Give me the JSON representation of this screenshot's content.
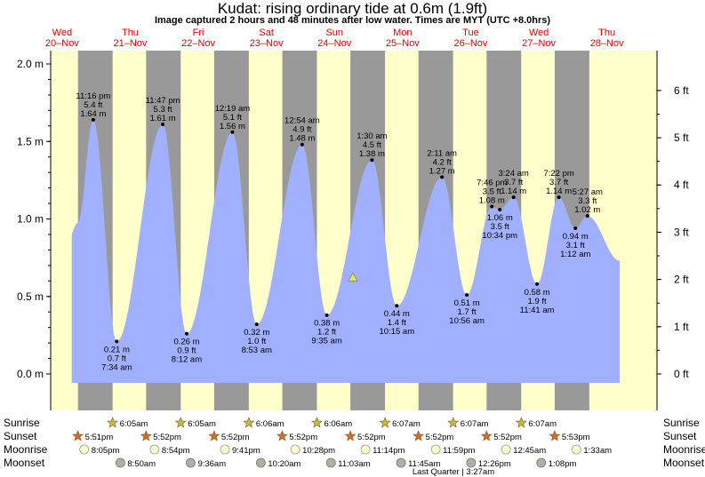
{
  "title": "Kudat: rising  ordinary tide at 0.6m (1.9ft)",
  "subtitle": "Image captured 2 hours and 48 minutes after low water. Times are MYT (UTC +8.0hrs)",
  "days": [
    {
      "name": "Wed",
      "date": "20–Nov"
    },
    {
      "name": "Thu",
      "date": "21–Nov"
    },
    {
      "name": "Fri",
      "date": "22–Nov"
    },
    {
      "name": "Sat",
      "date": "23–Nov"
    },
    {
      "name": "Sun",
      "date": "24–Nov"
    },
    {
      "name": "Mon",
      "date": "25–Nov"
    },
    {
      "name": "Tue",
      "date": "26–Nov"
    },
    {
      "name": "Wed",
      "date": "27–Nov"
    },
    {
      "name": "Thu",
      "date": "28–Nov"
    }
  ],
  "row_labels": {
    "sunrise": "Sunrise",
    "sunset": "Sunset",
    "moonrise": "Moonrise",
    "moonset": "Moonset"
  },
  "moon_phase": "Last Quarter | 3:27am",
  "colors": {
    "day_bg": "#ffffcc",
    "night_bg": "#999999",
    "water": "#a0b0ff",
    "day_text": "#e00000",
    "current_marker": "#e8e840"
  },
  "chart_data": {
    "type": "area",
    "ylabel_left_unit": "m",
    "ylabel_right_unit": "ft",
    "ylim": [
      -0.05,
      2.07
    ],
    "yticks_m": [
      "0.0 m",
      "0.5 m",
      "1.0 m",
      "1.5 m",
      "2.0 m"
    ],
    "yticks_ft": [
      "0 ft",
      "1 ft",
      "2 ft",
      "3 ft",
      "4 ft",
      "5 ft",
      "6 ft"
    ],
    "current": {
      "height_m": 0.6
    },
    "extremes": [
      {
        "type": "high",
        "time": "11:16 pm",
        "ft": "5.4 ft",
        "m": "1.64 m",
        "value": 1.64,
        "day": 0
      },
      {
        "type": "low",
        "time": "7:34 am",
        "ft": "0.7 ft",
        "m": "0.21 m",
        "value": 0.21,
        "day": 1
      },
      {
        "type": "high",
        "time": "11:47 pm",
        "ft": "5.3 ft",
        "m": "1.61 m",
        "value": 1.61,
        "day": 1
      },
      {
        "type": "low",
        "time": "8:12 am",
        "ft": "0.9 ft",
        "m": "0.26 m",
        "value": 0.26,
        "day": 2
      },
      {
        "type": "high",
        "time": "12:19 am",
        "ft": "5.1 ft",
        "m": "1.56 m",
        "value": 1.56,
        "day": 3
      },
      {
        "type": "low",
        "time": "8:53 am",
        "ft": "1.0 ft",
        "m": "0.32 m",
        "value": 0.32,
        "day": 3
      },
      {
        "type": "high",
        "time": "12:54 am",
        "ft": "4.9 ft",
        "m": "1.48 m",
        "value": 1.48,
        "day": 4
      },
      {
        "type": "low",
        "time": "9:35 am",
        "ft": "1.2 ft",
        "m": "0.38 m",
        "value": 0.38,
        "day": 4
      },
      {
        "type": "high",
        "time": "1:30 am",
        "ft": "4.5 ft",
        "m": "1.38 m",
        "value": 1.38,
        "day": 5
      },
      {
        "type": "low",
        "time": "10:15 am",
        "ft": "1.4 ft",
        "m": "0.44 m",
        "value": 0.44,
        "day": 5
      },
      {
        "type": "high",
        "time": "2:11 am",
        "ft": "4.2 ft",
        "m": "1.27 m",
        "value": 1.27,
        "day": 6
      },
      {
        "type": "low",
        "time": "10:56 am",
        "ft": "1.7 ft",
        "m": "0.51 m",
        "value": 0.51,
        "day": 6
      },
      {
        "type": "high",
        "time": "7:46 pm",
        "ft": "3.5 ft",
        "m": "1.08 m",
        "value": 1.08,
        "day": 6
      },
      {
        "type": "low",
        "time": "10:34 pm",
        "ft": "3.5 ft",
        "m": "1.06 m",
        "value": 1.06,
        "day": 6
      },
      {
        "type": "high",
        "time": "3:24 am",
        "ft": "3.7 ft",
        "m": "1.14 m",
        "value": 1.14,
        "day": 7
      },
      {
        "type": "low",
        "time": "11:41 am",
        "ft": "1.9 ft",
        "m": "0.58 m",
        "value": 0.58,
        "day": 7
      },
      {
        "type": "high",
        "time": "7:22 pm",
        "ft": "3.7 ft",
        "m": "1.14 m",
        "value": 1.14,
        "day": 7
      },
      {
        "type": "low",
        "time": "1:12 am",
        "ft": "3.1 ft",
        "m": "0.94 m",
        "value": 0.94,
        "day": 8
      },
      {
        "type": "high",
        "time": "5:27 am",
        "ft": "3.3 ft",
        "m": "1.02 m",
        "value": 1.02,
        "day": 8
      }
    ]
  },
  "sunrise": [
    "6:05am",
    "6:05am",
    "6:06am",
    "6:06am",
    "6:07am",
    "6:07am",
    "6:07am"
  ],
  "sunset": [
    "5:51pm",
    "5:52pm",
    "5:52pm",
    "5:52pm",
    "5:52pm",
    "5:52pm",
    "5:52pm",
    "5:53pm"
  ],
  "moonrise": [
    "8:05pm",
    "8:54pm",
    "9:41pm",
    "10:28pm",
    "11:14pm",
    "11:59pm",
    "12:45am",
    "1:33am"
  ],
  "moonset": [
    "8:50am",
    "9:36am",
    "10:20am",
    "11:03am",
    "11:45am",
    "12:26pm",
    "1:08pm"
  ]
}
